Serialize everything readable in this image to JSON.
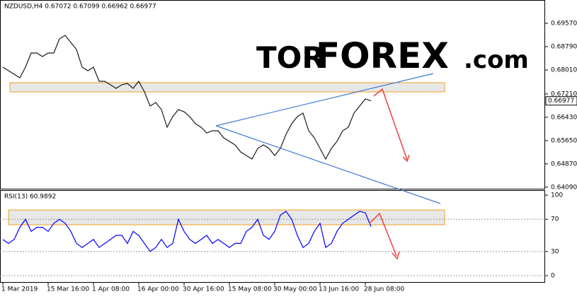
{
  "logo": {
    "prefix": "TOR",
    "brand": "FOREX",
    "suffix": ".com"
  },
  "chart_data": [
    {
      "type": "line",
      "title": "NZDUSD,H4 0.67072 0.67099 0.66962 0.66977",
      "categories": [
        "1 Mar 2019",
        null,
        null,
        null,
        null,
        null,
        null,
        null,
        "15 Mar 16:00",
        null,
        null,
        null,
        null,
        null,
        null,
        null,
        "1 Apr 08:00",
        null,
        null,
        null,
        null,
        null,
        null,
        null,
        "16 Apr 00:00",
        null,
        null,
        null,
        null,
        null,
        null,
        null,
        "30 Apr 16:00",
        null,
        null,
        null,
        null,
        null,
        null,
        null,
        "15 May 08:00",
        null,
        null,
        null,
        null,
        null,
        null,
        null,
        "30 May 00:00",
        null,
        null,
        null,
        null,
        null,
        null,
        null,
        "13 Jun 16:00",
        null,
        null,
        null,
        null,
        null,
        null,
        null,
        "28 Jun 08:00",
        null
      ],
      "values": [
        0.68104,
        0.67986,
        0.67868,
        0.6775,
        0.68104,
        0.68577,
        0.68577,
        0.68459,
        0.68577,
        0.68577,
        0.6905,
        0.69168,
        0.68932,
        0.68695,
        0.68104,
        0.67986,
        0.68104,
        0.67632,
        0.67632,
        0.67513,
        0.67395,
        0.67513,
        0.67561,
        0.67395,
        0.67632,
        0.67277,
        0.66804,
        0.66922,
        0.66686,
        0.66095,
        0.6645,
        0.66686,
        0.66615,
        0.6645,
        0.66213,
        0.66095,
        0.65906,
        0.65977,
        0.65977,
        0.6574,
        0.65622,
        0.65504,
        0.65268,
        0.65149,
        0.65031,
        0.65386,
        0.65504,
        0.65386,
        0.65149,
        0.65386,
        0.65859,
        0.66213,
        0.6645,
        0.66568,
        0.65977,
        0.6574,
        0.65386,
        0.65031,
        0.65386,
        0.65622,
        0.65977,
        0.66095,
        0.66568,
        0.66804,
        0.67041,
        0.66977
      ],
      "color": "#1a1a1a",
      "ylim": [
        0.64015,
        0.7035
      ],
      "yticks": [
        {
          "value": 0.6957,
          "label": "0.69570"
        },
        {
          "value": 0.6879,
          "label": "0.68790"
        },
        {
          "value": 0.6801,
          "label": "0.68010"
        },
        {
          "value": 0.6721,
          "label": "0.67210"
        },
        {
          "value": 0.6643,
          "label": "0.66430"
        },
        {
          "value": 0.6565,
          "label": "0.65650"
        },
        {
          "value": 0.6487,
          "label": "0.64870"
        },
        {
          "value": 0.6409,
          "label": "0.64090"
        }
      ],
      "last_price": {
        "value": 0.66977,
        "label": "0.66977"
      }
    },
    {
      "type": "line",
      "title": "RSI(13) 60.9892",
      "values": [
        45,
        40,
        45,
        60,
        70,
        55,
        60,
        60,
        55,
        65,
        70,
        65,
        55,
        40,
        35,
        40,
        45,
        35,
        40,
        45,
        50,
        50,
        40,
        55,
        50,
        40,
        30,
        35,
        45,
        35,
        40,
        70,
        55,
        45,
        40,
        45,
        50,
        40,
        45,
        40,
        35,
        40,
        40,
        55,
        60,
        70,
        50,
        45,
        55,
        75,
        80,
        70,
        50,
        35,
        40,
        55,
        65,
        35,
        40,
        55,
        65,
        70,
        75,
        80,
        78,
        61
      ],
      "color": "#0000ff",
      "ylim": [
        -8.8,
        105.3
      ],
      "yticks": [
        0,
        30,
        70,
        100
      ]
    }
  ]
}
